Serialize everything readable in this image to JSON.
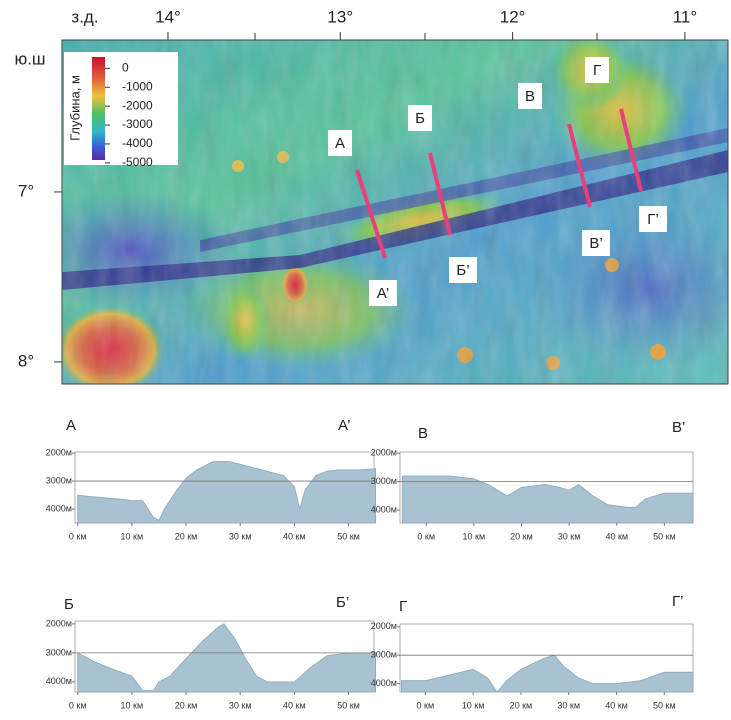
{
  "map": {
    "lon_unit": "з.д.",
    "lat_unit": "ю.ш",
    "xlim": [
      14.615,
      10.75
    ],
    "ylim": [
      6.106,
      8.13
    ],
    "lon_ticks": [
      {
        "value": 14,
        "label": "14°"
      },
      {
        "value": 13,
        "label": "13°"
      },
      {
        "value": 12,
        "label": "12°"
      },
      {
        "value": 11,
        "label": "11°"
      }
    ],
    "lat_ticks": [
      {
        "value": 7,
        "label": "7°"
      },
      {
        "value": 8,
        "label": "8°"
      }
    ],
    "legend": {
      "title": "Глубина, м",
      "range": [
        600,
        -4850
      ],
      "ticks": [
        0,
        -1000,
        -2000,
        -3000,
        -4000,
        -5000
      ]
    },
    "sections": [
      {
        "start": "А",
        "end": "А’"
      },
      {
        "start": "Б",
        "end": "Б’"
      },
      {
        "start": "В",
        "end": "В’"
      },
      {
        "start": "Г",
        "end": "Г’"
      }
    ]
  },
  "chart_data": [
    {
      "type": "area",
      "start_label": "А",
      "end_label": "А’",
      "color": "#a9c2d2",
      "x": [
        0,
        2,
        5,
        8,
        10,
        12,
        14,
        15,
        16,
        18,
        20,
        22,
        25,
        28,
        30,
        33,
        36,
        38,
        40,
        41,
        42,
        44,
        46,
        48,
        50,
        52,
        55
      ],
      "values": [
        3500,
        3550,
        3600,
        3650,
        3700,
        3700,
        4300,
        4400,
        4000,
        3400,
        2900,
        2600,
        2300,
        2300,
        2400,
        2550,
        2700,
        2800,
        3200,
        4000,
        3300,
        2800,
        2650,
        2600,
        2600,
        2600,
        2550
      ],
      "xlim": [
        -0.5,
        54.7
      ],
      "ylim": [
        4500,
        1960
      ],
      "reference_line": 3000,
      "xticks": [
        {
          "value": 0,
          "label": "0 км"
        },
        {
          "value": 10,
          "label": "10 км"
        },
        {
          "value": 20,
          "label": "20 км"
        },
        {
          "value": 30,
          "label": "30 км"
        },
        {
          "value": 40,
          "label": "40 км"
        },
        {
          "value": 50,
          "label": "50 км"
        }
      ],
      "yticks": [
        {
          "value": 2000,
          "label": "2000м"
        },
        {
          "value": 3000,
          "label": "3000м"
        },
        {
          "value": 4000,
          "label": "4000м"
        }
      ]
    },
    {
      "type": "area",
      "start_label": "В",
      "end_label": "В’",
      "color": "#a9c2d2",
      "x": [
        -5,
        0,
        5,
        10,
        13,
        17,
        20,
        25,
        28,
        30,
        32,
        35,
        38,
        42,
        44,
        46,
        50,
        56
      ],
      "values": [
        2800,
        2800,
        2800,
        2900,
        3100,
        3500,
        3200,
        3100,
        3200,
        3300,
        3100,
        3500,
        3800,
        3900,
        3900,
        3600,
        3400,
        3400
      ],
      "xlim": [
        -5.5,
        56
      ],
      "ylim": [
        4450,
        1960
      ],
      "reference_line": 3000,
      "xticks": [
        {
          "value": 0,
          "label": "0 км"
        },
        {
          "value": 10,
          "label": "10 км"
        },
        {
          "value": 20,
          "label": "20 км"
        },
        {
          "value": 30,
          "label": "30 км"
        },
        {
          "value": 40,
          "label": "40 км"
        },
        {
          "value": 50,
          "label": "50 км"
        }
      ],
      "yticks": [
        {
          "value": 2000,
          "label": "2000м"
        },
        {
          "value": 3000,
          "label": "3000м"
        },
        {
          "value": 4000,
          "label": "4000м"
        }
      ]
    },
    {
      "type": "area",
      "start_label": "Б",
      "end_label": "Б’",
      "color": "#a9c2d2",
      "x": [
        0,
        3,
        7,
        10,
        12,
        14,
        15,
        17,
        20,
        23,
        26,
        27,
        29,
        31,
        33,
        35,
        40,
        43,
        46,
        50,
        55
      ],
      "values": [
        3000,
        3300,
        3600,
        3800,
        4300,
        4300,
        4000,
        3800,
        3200,
        2600,
        2100,
        2000,
        2500,
        3200,
        3800,
        4000,
        4000,
        3500,
        3100,
        3000,
        3000
      ],
      "xlim": [
        -0.5,
        54.7
      ],
      "ylim": [
        4350,
        1900
      ],
      "reference_line": 3000,
      "xticks": [
        {
          "value": 0,
          "label": "0 км"
        },
        {
          "value": 10,
          "label": "10 км"
        },
        {
          "value": 20,
          "label": "20 км"
        },
        {
          "value": 30,
          "label": "30 км"
        },
        {
          "value": 40,
          "label": "40 км"
        },
        {
          "value": 50,
          "label": "50 км"
        }
      ],
      "yticks": [
        {
          "value": 2000,
          "label": "2000м"
        },
        {
          "value": 3000,
          "label": "3000м"
        },
        {
          "value": 4000,
          "label": "4000м"
        }
      ]
    },
    {
      "type": "area",
      "start_label": "Г",
      "end_label": "Г’",
      "color": "#a9c2d2",
      "x": [
        -5,
        0,
        5,
        10,
        13,
        15,
        17,
        20,
        25,
        27,
        29,
        32,
        35,
        40,
        45,
        50,
        56
      ],
      "values": [
        3900,
        3900,
        3700,
        3500,
        3800,
        4300,
        3900,
        3500,
        3100,
        3000,
        3400,
        3800,
        4000,
        4000,
        3900,
        3600,
        3600
      ],
      "xlim": [
        -5.3,
        56
      ],
      "ylim": [
        4300,
        1900
      ],
      "reference_line": 3000,
      "xticks": [
        {
          "value": 0,
          "label": "0 км"
        },
        {
          "value": 10,
          "label": "10 км"
        },
        {
          "value": 20,
          "label": "20 км"
        },
        {
          "value": 30,
          "label": "30 км"
        },
        {
          "value": 40,
          "label": "40 км"
        },
        {
          "value": 50,
          "label": "50 км"
        }
      ],
      "yticks": [
        {
          "value": 2000,
          "label": "2000м"
        },
        {
          "value": 3000,
          "label": "3000м"
        },
        {
          "value": 4000,
          "label": "4000м"
        }
      ]
    }
  ]
}
